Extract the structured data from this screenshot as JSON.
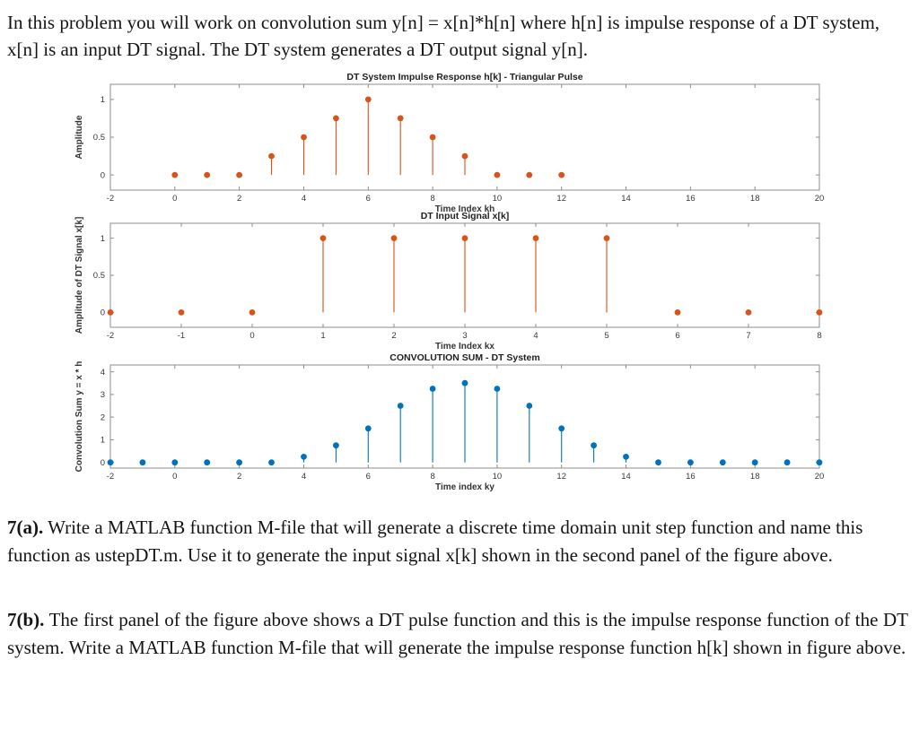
{
  "intro": {
    "text": "In this problem you will work on convolution sum y[n] = x[n]*h[n] where h[n] is impulse response of a DT system, x[n] is an input DT signal. The DT system generates a DT output signal y[n]."
  },
  "questions": {
    "q7a": {
      "label": "7(a).",
      "text": " Write a MATLAB function M-file that will generate a discrete time domain unit step function and name this function as ustepDT.m.  Use it to generate the input signal x[k] shown in the second panel of the figure above."
    },
    "q7b": {
      "label": "7(b).",
      "text": " The first panel of the figure above shows a DT pulse function and this is the impulse response function of the DT system.  Write a MATLAB function M-file that will generate the impulse response function h[k] shown in figure above."
    }
  },
  "chart_data": [
    {
      "type": "stem",
      "title": "DT System Impulse Response h[k] - Triangular Pulse",
      "xlabel": "Time Index kh",
      "ylabel": "Amplitude",
      "xlim": [
        -2,
        20
      ],
      "ylim": [
        -0.2,
        1.2
      ],
      "xticks": [
        -2,
        0,
        2,
        4,
        6,
        8,
        10,
        12,
        14,
        16,
        18,
        20
      ],
      "yticks": [
        0,
        0.5,
        1
      ],
      "color": "#D95319",
      "grid": false,
      "x": [
        0,
        1,
        2,
        3,
        4,
        5,
        6,
        7,
        8,
        9,
        10,
        11,
        12
      ],
      "y": [
        0,
        0,
        0,
        0.25,
        0.5,
        0.75,
        1,
        0.75,
        0.5,
        0.25,
        0,
        0,
        0
      ]
    },
    {
      "type": "stem",
      "title": "DT Input Signal x[k]",
      "xlabel": "Time Index kx",
      "ylabel": "Amplitude of DT Signal x[k]",
      "xlim": [
        -2,
        8
      ],
      "ylim": [
        -0.2,
        1.2
      ],
      "xticks": [
        -2,
        -1,
        0,
        1,
        2,
        3,
        4,
        5,
        6,
        7,
        8
      ],
      "yticks": [
        0,
        0.5,
        1
      ],
      "color": "#D95319",
      "grid": false,
      "x": [
        -2,
        -1,
        0,
        1,
        2,
        3,
        4,
        5,
        6,
        7,
        8
      ],
      "y": [
        0,
        0,
        0,
        1,
        1,
        1,
        1,
        1,
        0,
        0,
        0
      ]
    },
    {
      "type": "stem",
      "title": "CONVOLUTION SUM - DT System",
      "xlabel": "Time index ky",
      "ylabel": "Convolution Sum y = x * h",
      "xlim": [
        -2,
        20
      ],
      "ylim": [
        -0.25,
        4.3
      ],
      "xticks": [
        -2,
        0,
        2,
        4,
        6,
        8,
        10,
        12,
        14,
        16,
        18,
        20
      ],
      "yticks": [
        0,
        1,
        2,
        3,
        4
      ],
      "color": "#0072BD",
      "grid": false,
      "x": [
        -2,
        -1,
        0,
        1,
        2,
        3,
        4,
        5,
        6,
        7,
        8,
        9,
        10,
        11,
        12,
        13,
        14,
        15,
        16,
        17,
        18,
        19,
        20
      ],
      "y": [
        0,
        0,
        0,
        0,
        0,
        0,
        0.25,
        0.75,
        1.5,
        2.5,
        3.25,
        3.5,
        3.25,
        2.5,
        1.5,
        0.75,
        0.25,
        0,
        0,
        0,
        0,
        0,
        0
      ]
    }
  ]
}
